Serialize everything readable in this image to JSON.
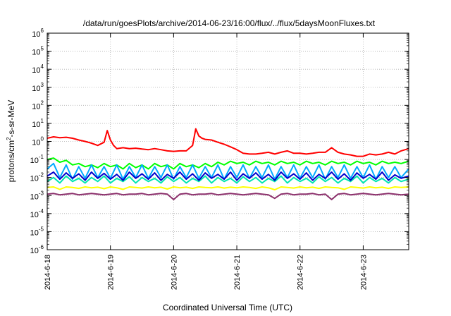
{
  "chart_data": {
    "type": "line",
    "title": "/data/run/goesPlots/archive/2014-06-23/16:00/flux/../flux/5daysMoonFluxes.txt",
    "xlabel": "Coordinated Universal Time (UTC)",
    "ylabel_parts": [
      "protons/cm",
      "2",
      "-s-sr-MeV"
    ],
    "x_range": [
      0,
      5.72
    ],
    "x_ticks": [
      {
        "value": 0,
        "label": "2014-6-18"
      },
      {
        "value": 1,
        "label": "2014-6-19"
      },
      {
        "value": 2,
        "label": "2014-6-20"
      },
      {
        "value": 3,
        "label": "2014-6-21"
      },
      {
        "value": 4,
        "label": "2014-6-22"
      },
      {
        "value": 5,
        "label": "2014-6-23"
      }
    ],
    "y_scale": "log",
    "y_range_exp": [
      -6,
      6
    ],
    "y_ticks": [
      {
        "base": "10",
        "exp": "-6"
      },
      {
        "base": "10",
        "exp": "-5"
      },
      {
        "base": "10",
        "exp": "-4"
      },
      {
        "base": "10",
        "exp": "-3"
      },
      {
        "base": "10",
        "exp": "-2"
      },
      {
        "base": "10",
        "exp": "-1"
      },
      {
        "base": "10",
        "exp": "0"
      },
      {
        "base": "10",
        "exp": "1"
      },
      {
        "base": "10",
        "exp": "2"
      },
      {
        "base": "10",
        "exp": "3"
      },
      {
        "base": "10",
        "exp": "4"
      },
      {
        "base": "10",
        "exp": "5"
      },
      {
        "base": "10",
        "exp": "6"
      }
    ],
    "grid": true,
    "series": [
      {
        "color": "#ff0000",
        "x": [
          0,
          0.1,
          0.2,
          0.3,
          0.4,
          0.5,
          0.6,
          0.7,
          0.8,
          0.9,
          0.95,
          1.0,
          1.05,
          1.1,
          1.2,
          1.3,
          1.4,
          1.5,
          1.6,
          1.7,
          1.8,
          1.9,
          2.0,
          2.1,
          2.2,
          2.3,
          2.35,
          2.4,
          2.45,
          2.5,
          2.6,
          2.7,
          2.8,
          2.9,
          3.0,
          3.1,
          3.2,
          3.3,
          3.4,
          3.5,
          3.6,
          3.7,
          3.8,
          3.9,
          4.0,
          4.1,
          4.2,
          4.3,
          4.4,
          4.5,
          4.6,
          4.7,
          4.8,
          4.9,
          5.0,
          5.1,
          5.2,
          5.3,
          5.4,
          5.5,
          5.6,
          5.72
        ],
        "values": [
          1.5,
          1.8,
          1.6,
          1.7,
          1.5,
          1.2,
          1.0,
          0.8,
          0.6,
          0.9,
          4.0,
          1.2,
          0.6,
          0.4,
          0.45,
          0.4,
          0.42,
          0.38,
          0.35,
          0.4,
          0.35,
          0.3,
          0.28,
          0.3,
          0.3,
          0.6,
          5.0,
          2.0,
          1.5,
          1.3,
          1.2,
          0.9,
          0.7,
          0.5,
          0.35,
          0.22,
          0.2,
          0.2,
          0.22,
          0.25,
          0.2,
          0.25,
          0.3,
          0.22,
          0.22,
          0.2,
          0.22,
          0.25,
          0.25,
          0.45,
          0.25,
          0.2,
          0.18,
          0.15,
          0.15,
          0.2,
          0.18,
          0.2,
          0.25,
          0.2,
          0.3,
          0.4
        ]
      },
      {
        "color": "#00ff00",
        "x": [
          0,
          0.1,
          0.2,
          0.3,
          0.4,
          0.5,
          0.6,
          0.7,
          0.8,
          0.9,
          1.0,
          1.1,
          1.2,
          1.3,
          1.4,
          1.5,
          1.6,
          1.7,
          1.8,
          1.9,
          2.0,
          2.1,
          2.2,
          2.3,
          2.4,
          2.5,
          2.6,
          2.7,
          2.8,
          2.9,
          3.0,
          3.1,
          3.2,
          3.3,
          3.4,
          3.5,
          3.6,
          3.7,
          3.8,
          3.9,
          4.0,
          4.1,
          4.2,
          4.3,
          4.4,
          4.5,
          4.6,
          4.7,
          4.8,
          4.9,
          5.0,
          5.1,
          5.2,
          5.3,
          5.4,
          5.5,
          5.6,
          5.72
        ],
        "values": [
          0.1,
          0.12,
          0.07,
          0.09,
          0.05,
          0.06,
          0.04,
          0.05,
          0.035,
          0.06,
          0.04,
          0.05,
          0.03,
          0.06,
          0.035,
          0.05,
          0.03,
          0.06,
          0.04,
          0.05,
          0.03,
          0.06,
          0.04,
          0.05,
          0.035,
          0.06,
          0.04,
          0.07,
          0.05,
          0.08,
          0.06,
          0.07,
          0.05,
          0.08,
          0.06,
          0.07,
          0.05,
          0.08,
          0.06,
          0.07,
          0.05,
          0.08,
          0.06,
          0.07,
          0.05,
          0.08,
          0.06,
          0.07,
          0.05,
          0.08,
          0.06,
          0.07,
          0.05,
          0.08,
          0.06,
          0.07,
          0.06,
          0.08
        ]
      },
      {
        "color": "#00aaff",
        "x": [
          0,
          0.1,
          0.2,
          0.3,
          0.4,
          0.5,
          0.6,
          0.7,
          0.8,
          0.9,
          1.0,
          1.1,
          1.2,
          1.3,
          1.4,
          1.5,
          1.6,
          1.7,
          1.8,
          1.9,
          2.0,
          2.1,
          2.2,
          2.3,
          2.4,
          2.5,
          2.6,
          2.7,
          2.8,
          2.9,
          3.0,
          3.1,
          3.2,
          3.3,
          3.4,
          3.5,
          3.6,
          3.7,
          3.8,
          3.9,
          4.0,
          4.1,
          4.2,
          4.3,
          4.4,
          4.5,
          4.6,
          4.7,
          4.8,
          4.9,
          5.0,
          5.1,
          5.2,
          5.3,
          5.4,
          5.5,
          5.6,
          5.72
        ],
        "values": [
          0.03,
          0.06,
          0.01,
          0.05,
          0.008,
          0.04,
          0.009,
          0.05,
          0.01,
          0.04,
          0.009,
          0.05,
          0.008,
          0.04,
          0.01,
          0.05,
          0.009,
          0.04,
          0.01,
          0.05,
          0.008,
          0.04,
          0.01,
          0.05,
          0.009,
          0.04,
          0.01,
          0.05,
          0.008,
          0.04,
          0.01,
          0.05,
          0.009,
          0.04,
          0.01,
          0.05,
          0.008,
          0.04,
          0.01,
          0.05,
          0.009,
          0.04,
          0.01,
          0.05,
          0.008,
          0.04,
          0.01,
          0.05,
          0.009,
          0.04,
          0.01,
          0.05,
          0.008,
          0.04,
          0.01,
          0.04,
          0.01,
          0.03
        ]
      },
      {
        "color": "#00e5b0",
        "x": [
          0,
          0.1,
          0.2,
          0.3,
          0.4,
          0.5,
          0.6,
          0.7,
          0.8,
          0.9,
          1.0,
          1.1,
          1.2,
          1.3,
          1.4,
          1.5,
          1.6,
          1.7,
          1.8,
          1.9,
          2.0,
          2.1,
          2.2,
          2.3,
          2.4,
          2.5,
          2.6,
          2.7,
          2.8,
          2.9,
          3.0,
          3.1,
          3.2,
          3.3,
          3.4,
          3.5,
          3.6,
          3.7,
          3.8,
          3.9,
          4.0,
          4.1,
          4.2,
          4.3,
          4.4,
          4.5,
          4.6,
          4.7,
          4.8,
          4.9,
          5.0,
          5.1,
          5.2,
          5.3,
          5.4,
          5.5,
          5.6,
          5.72
        ],
        "values": [
          0.006,
          0.01,
          0.005,
          0.012,
          0.006,
          0.009,
          0.005,
          0.01,
          0.006,
          0.012,
          0.005,
          0.009,
          0.006,
          0.011,
          0.005,
          0.01,
          0.006,
          0.009,
          0.005,
          0.011,
          0.006,
          0.01,
          0.005,
          0.009,
          0.006,
          0.012,
          0.005,
          0.01,
          0.006,
          0.009,
          0.005,
          0.011,
          0.006,
          0.01,
          0.005,
          0.009,
          0.006,
          0.012,
          0.005,
          0.01,
          0.006,
          0.009,
          0.005,
          0.011,
          0.006,
          0.01,
          0.005,
          0.009,
          0.006,
          0.012,
          0.005,
          0.01,
          0.006,
          0.009,
          0.005,
          0.01,
          0.006,
          0.008
        ]
      },
      {
        "color": "#0000cc",
        "x": [
          0,
          0.1,
          0.2,
          0.3,
          0.4,
          0.5,
          0.6,
          0.7,
          0.8,
          0.9,
          1.0,
          1.1,
          1.2,
          1.3,
          1.4,
          1.5,
          1.6,
          1.7,
          1.8,
          1.9,
          2.0,
          2.1,
          2.2,
          2.3,
          2.4,
          2.5,
          2.6,
          2.7,
          2.8,
          2.9,
          3.0,
          3.1,
          3.2,
          3.3,
          3.4,
          3.5,
          3.6,
          3.7,
          3.8,
          3.9,
          4.0,
          4.1,
          4.2,
          4.3,
          4.4,
          4.5,
          4.6,
          4.7,
          4.8,
          4.9,
          5.0,
          5.1,
          5.2,
          5.3,
          5.4,
          5.5,
          5.6,
          5.72
        ],
        "values": [
          0.012,
          0.02,
          0.008,
          0.018,
          0.009,
          0.016,
          0.007,
          0.02,
          0.009,
          0.017,
          0.008,
          0.015,
          0.007,
          0.02,
          0.009,
          0.016,
          0.008,
          0.018,
          0.007,
          0.015,
          0.009,
          0.02,
          0.008,
          0.016,
          0.007,
          0.018,
          0.009,
          0.015,
          0.008,
          0.02,
          0.007,
          0.016,
          0.009,
          0.018,
          0.008,
          0.015,
          0.007,
          0.02,
          0.009,
          0.016,
          0.008,
          0.018,
          0.007,
          0.015,
          0.009,
          0.02,
          0.008,
          0.016,
          0.007,
          0.018,
          0.009,
          0.015,
          0.008,
          0.02,
          0.007,
          0.014,
          0.009,
          0.012
        ]
      },
      {
        "color": "#ffff00",
        "x": [
          0,
          0.1,
          0.2,
          0.3,
          0.4,
          0.5,
          0.6,
          0.7,
          0.8,
          0.9,
          1.0,
          1.1,
          1.2,
          1.3,
          1.4,
          1.5,
          1.6,
          1.7,
          1.8,
          1.9,
          2.0,
          2.1,
          2.2,
          2.3,
          2.4,
          2.5,
          2.6,
          2.7,
          2.8,
          2.9,
          3.0,
          3.1,
          3.2,
          3.3,
          3.4,
          3.5,
          3.6,
          3.7,
          3.8,
          3.9,
          4.0,
          4.1,
          4.2,
          4.3,
          4.4,
          4.5,
          4.6,
          4.7,
          4.8,
          4.9,
          5.0,
          5.1,
          5.2,
          5.3,
          5.4,
          5.5,
          5.6,
          5.72
        ],
        "values": [
          0.0028,
          0.003,
          0.0022,
          0.003,
          0.0028,
          0.0025,
          0.003,
          0.0027,
          0.0029,
          0.0024,
          0.003,
          0.0027,
          0.0022,
          0.003,
          0.0028,
          0.0026,
          0.003,
          0.0027,
          0.0029,
          0.0023,
          0.003,
          0.0027,
          0.0029,
          0.0025,
          0.003,
          0.0028,
          0.0027,
          0.003,
          0.0026,
          0.0029,
          0.0027,
          0.003,
          0.0028,
          0.0025,
          0.003,
          0.0027,
          0.0021,
          0.003,
          0.0028,
          0.0026,
          0.003,
          0.0027,
          0.0029,
          0.0025,
          0.003,
          0.0028,
          0.0027,
          0.0022,
          0.003,
          0.0028,
          0.0026,
          0.003,
          0.0027,
          0.0029,
          0.0025,
          0.003,
          0.0028,
          0.003
        ]
      },
      {
        "color": "#8b2f6b",
        "x": [
          0,
          0.1,
          0.2,
          0.3,
          0.4,
          0.5,
          0.6,
          0.7,
          0.8,
          0.9,
          1.0,
          1.1,
          1.2,
          1.3,
          1.4,
          1.5,
          1.6,
          1.7,
          1.8,
          1.9,
          2.0,
          2.1,
          2.2,
          2.3,
          2.4,
          2.5,
          2.6,
          2.7,
          2.8,
          2.9,
          3.0,
          3.1,
          3.2,
          3.3,
          3.4,
          3.5,
          3.6,
          3.7,
          3.8,
          3.9,
          4.0,
          4.1,
          4.2,
          4.3,
          4.4,
          4.5,
          4.6,
          4.7,
          4.8,
          4.9,
          5.0,
          5.1,
          5.2,
          5.3,
          5.4,
          5.5,
          5.6,
          5.72
        ],
        "values": [
          0.0012,
          0.0013,
          0.0011,
          0.0012,
          0.0013,
          0.0011,
          0.0012,
          0.0013,
          0.0012,
          0.0011,
          0.0012,
          0.0013,
          0.0011,
          0.0012,
          0.0012,
          0.0013,
          0.0011,
          0.0012,
          0.0013,
          0.0012,
          0.0006,
          0.0012,
          0.0013,
          0.0011,
          0.0012,
          0.0012,
          0.0013,
          0.0011,
          0.0012,
          0.0013,
          0.0012,
          0.0011,
          0.0012,
          0.0013,
          0.0012,
          0.0011,
          0.0007,
          0.0012,
          0.0013,
          0.0011,
          0.0012,
          0.0012,
          0.0013,
          0.0011,
          0.0012,
          0.0006,
          0.0012,
          0.0013,
          0.0011,
          0.0012,
          0.0013,
          0.0012,
          0.0011,
          0.0012,
          0.0013,
          0.0012,
          0.0011,
          0.0012
        ]
      }
    ]
  }
}
